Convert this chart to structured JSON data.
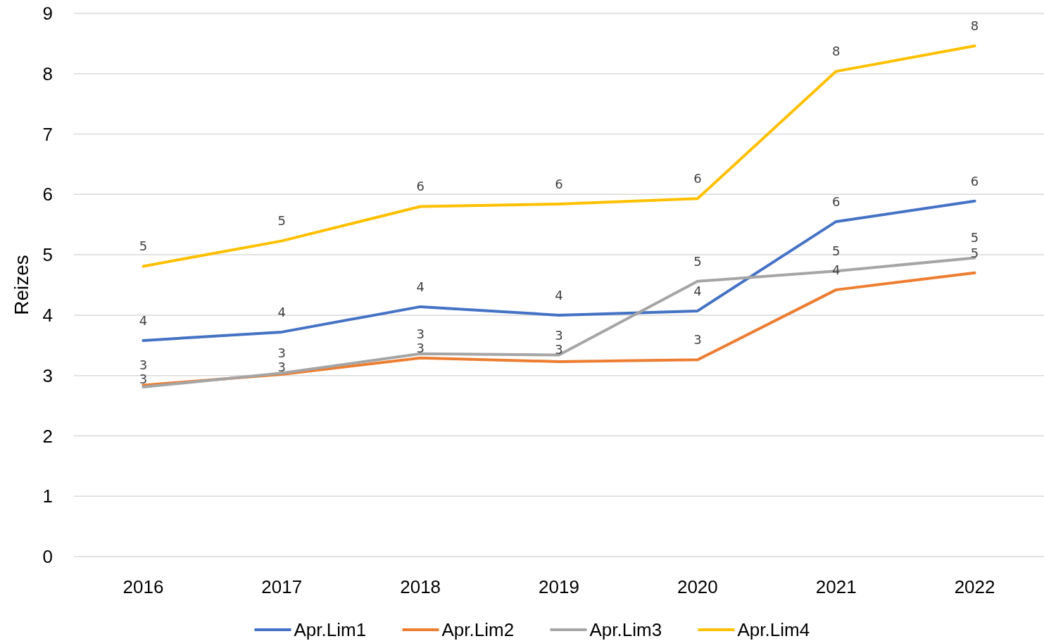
{
  "chart_data": {
    "type": "line",
    "ylabel": "Reizes",
    "categories": [
      "2016",
      "2017",
      "2018",
      "2019",
      "2020",
      "2021",
      "2022"
    ],
    "series": [
      {
        "name": "Apr.Lim1",
        "color": "#4472c4",
        "values": [
          3.58,
          3.72,
          4.14,
          4.0,
          4.07,
          5.55,
          5.89
        ],
        "value_labels": [
          "4",
          "4",
          "4",
          "4",
          "4",
          "6",
          "6"
        ]
      },
      {
        "name": "Apr.Lim2",
        "color": "#ed7d31",
        "values": [
          2.84,
          3.02,
          3.29,
          3.23,
          3.26,
          4.42,
          4.7
        ],
        "value_labels": [
          "3",
          "3",
          "3",
          "3",
          "3",
          "4",
          "5"
        ]
      },
      {
        "name": "Apr.Lim3",
        "color": "#a5a5a5",
        "values": [
          2.81,
          3.04,
          3.36,
          3.34,
          4.56,
          4.73,
          4.95
        ],
        "value_labels": [
          "3",
          "3",
          "3",
          "3",
          "5",
          "5",
          "5"
        ]
      },
      {
        "name": "Apr.Lim4",
        "color": "#ffc000",
        "values": [
          4.81,
          5.23,
          5.8,
          5.84,
          5.93,
          8.04,
          8.46
        ],
        "value_labels": [
          "5",
          "5",
          "6",
          "6",
          "6",
          "8",
          "8"
        ]
      }
    ],
    "ylim": [
      0,
      9
    ],
    "yticks": [
      0,
      1,
      2,
      3,
      4,
      5,
      6,
      7,
      8,
      9
    ],
    "grid": "y",
    "legend": "bottom"
  }
}
